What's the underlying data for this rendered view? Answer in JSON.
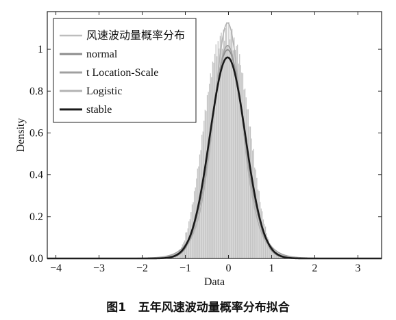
{
  "chart_data": {
    "type": "bar",
    "title": "",
    "caption": "图1   五年风速波动量概率分布拟合",
    "xlabel": "Data",
    "ylabel": "Density",
    "xlim": [
      -4.2,
      3.55
    ],
    "ylim": [
      0,
      1.18
    ],
    "xticks": [
      -4,
      -3,
      -2,
      -1,
      0,
      1,
      2,
      3
    ],
    "yticks": [
      0,
      0.2,
      0.4,
      0.6,
      0.8,
      1
    ],
    "grid": false,
    "legend_position": "top-left",
    "legend": [
      {
        "label": "风速波动量概率分布",
        "color": "#bdbdbd",
        "width": 2.5
      },
      {
        "label": "normal",
        "color": "#8c8c8c",
        "width": 3
      },
      {
        "label": "t Location-Scale",
        "color": "#a0a0a0",
        "width": 3
      },
      {
        "label": "Logistic",
        "color": "#b3b3b3",
        "width": 3
      },
      {
        "label": "stable",
        "color": "#1a1a1a",
        "width": 3
      }
    ],
    "histogram": {
      "name": "风速波动量概率分布",
      "color": "#bdbdbd",
      "bin_width": 0.025,
      "bin_centers": [
        -1.3875,
        -1.3625,
        -1.3375,
        -1.3125,
        -1.2875,
        -1.2625,
        -1.2375,
        -1.2125,
        -1.1875,
        -1.1625,
        -1.1375,
        -1.1125,
        -1.0875,
        -1.0625,
        -1.0375,
        -1.0125,
        -0.9875,
        -0.9625,
        -0.9375,
        -0.9125,
        -0.8875,
        -0.8625,
        -0.8375,
        -0.8125,
        -0.7875,
        -0.7625,
        -0.7375,
        -0.7125,
        -0.6875,
        -0.6625,
        -0.6375,
        -0.6125,
        -0.5875,
        -0.5625,
        -0.5375,
        -0.5125,
        -0.4875,
        -0.4625,
        -0.4375,
        -0.4125,
        -0.3875,
        -0.3625,
        -0.3375,
        -0.3125,
        -0.2875,
        -0.2625,
        -0.2375,
        -0.2125,
        -0.1875,
        -0.1625,
        -0.1375,
        -0.1125,
        -0.0875,
        -0.0625,
        -0.0375,
        -0.0125,
        0.0125,
        0.0375,
        0.0625,
        0.0875,
        0.1125,
        0.1375,
        0.1625,
        0.1875,
        0.2125,
        0.2375,
        0.2625,
        0.2875,
        0.3125,
        0.3375,
        0.3625,
        0.3875,
        0.4125,
        0.4375,
        0.4625,
        0.4875,
        0.5125,
        0.5375,
        0.5625,
        0.5875,
        0.6125,
        0.6375,
        0.6625,
        0.6875,
        0.7125,
        0.7375,
        0.7625,
        0.7875,
        0.8125,
        0.8375,
        0.8625,
        0.8875,
        0.9125,
        0.9375,
        0.9625,
        0.9875,
        1.0125,
        1.0375,
        1.0625,
        1.0875,
        1.1125,
        1.1375,
        1.1625,
        1.1875,
        1.2125,
        1.2375,
        1.2625,
        1.2875,
        1.3125,
        1.3375,
        1.3625,
        1.3875
      ],
      "densities": [
        0.0024,
        0.0039,
        0.0044,
        0.0083,
        0.0094,
        0.0097,
        0.0136,
        0.0131,
        0.0254,
        0.0274,
        0.0418,
        0.0426,
        0.053,
        0.067,
        0.0765,
        0.0861,
        0.1233,
        0.1249,
        0.1435,
        0.1774,
        0.188,
        0.2216,
        0.258,
        0.2691,
        0.322,
        0.3387,
        0.3819,
        0.4294,
        0.4396,
        0.4968,
        0.5174,
        0.5913,
        0.6062,
        0.6576,
        0.7097,
        0.7048,
        0.7806,
        0.7963,
        0.8345,
        0.8845,
        0.8659,
        0.9406,
        0.9353,
        0.9775,
        1.0231,
        0.9661,
        1.0385,
        1.0034,
        1.0633,
        1.0792,
        1.002,
        1.0935,
        1.04,
        1.1005,
        1.129,
        1.0135,
        1.13,
        1.0475,
        1.0825,
        1.0978,
        0.9952,
        1.0562,
        0.997,
        1.0157,
        1.0215,
        0.9315,
        0.9766,
        0.9238,
        0.8885,
        0.8848,
        0.8071,
        0.8117,
        0.7699,
        0.7124,
        0.713,
        0.6309,
        0.6304,
        0.5734,
        0.5153,
        0.5232,
        0.4341,
        0.4251,
        0.3856,
        0.3291,
        0.3231,
        0.2696,
        0.2385,
        0.2246,
        0.1864,
        0.1645,
        0.1521,
        0.1201,
        0.1002,
        0.0914,
        0.0719,
        0.0559,
        0.0505,
        0.0427,
        0.0312,
        0.0242,
        0.0244,
        0.0157,
        0.0149,
        0.0107,
        0.0073,
        0.0062,
        0.0044,
        0.0034,
        0.0033,
        0.0019,
        0.0014,
        0.0014
      ]
    },
    "fits": [
      {
        "name": "normal",
        "dist": "normal",
        "mu": -0.02,
        "sigma": 0.4,
        "color": "#8c8c8c",
        "width": 1.8
      },
      {
        "name": "t Location-Scale",
        "dist": "t",
        "mu": -0.02,
        "sigma": 0.38,
        "nu": 8,
        "color": "#a0a0a0",
        "width": 1.6
      },
      {
        "name": "Logistic",
        "dist": "logistic",
        "mu": -0.02,
        "s": 0.222,
        "color": "#b3b3b3",
        "width": 1.6
      },
      {
        "name": "stable",
        "dist": "normal",
        "mu": -0.02,
        "sigma": 0.415,
        "color": "#1a1a1a",
        "width": 2.6
      }
    ]
  }
}
